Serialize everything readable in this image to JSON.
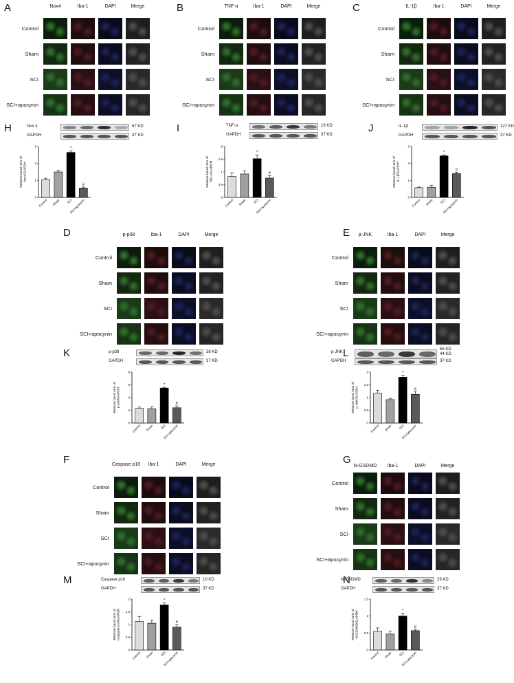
{
  "if_panels": [
    {
      "letter": "A",
      "rows": [
        "Control",
        "Sham",
        "SCI",
        "SCI+apocynin"
      ],
      "cols": [
        "Nox4",
        "Iba-1",
        "DAPI",
        "Merge"
      ]
    },
    {
      "letter": "B",
      "rows": [
        "Control",
        "Sham",
        "SCI",
        "SCI+apocynin"
      ],
      "cols": [
        "TNF-α",
        "Iba-1",
        "DAPI",
        "Merge"
      ]
    },
    {
      "letter": "C",
      "rows": [
        "Control",
        "Sham",
        "SCI",
        "SCI+apocynin"
      ],
      "cols": [
        "IL-1β",
        "Iba-1",
        "DAPI",
        "Merge"
      ]
    },
    {
      "letter": "D",
      "rows": [
        "Control",
        "Sham",
        "SCI",
        "SCI+apocynin"
      ],
      "cols": [
        "p-p38",
        "Iba-1",
        "DAPI",
        "Merge"
      ]
    },
    {
      "letter": "E",
      "rows": [
        "Control",
        "Sham",
        "SCI",
        "SCI+apocynin"
      ],
      "cols": [
        "p-JNK",
        "Iba-1",
        "DAPI",
        "Merge"
      ]
    },
    {
      "letter": "F",
      "rows": [
        "Control",
        "Sham",
        "SCI",
        "SCI+apocynin"
      ],
      "cols": [
        "Caspase p10",
        "Iba-1",
        "DAPI",
        "Merge"
      ]
    },
    {
      "letter": "G",
      "rows": [
        "Control",
        "Sham",
        "SCI",
        "SCI+apocynin"
      ],
      "cols": [
        "N-GSDMD",
        "Iba-1",
        "DAPI",
        "Merge"
      ]
    }
  ],
  "blots": [
    {
      "letter": "H",
      "protein": "Nox 4",
      "protein_kd": "67 KD",
      "loading": "GAPDH",
      "loading_kd": "37 KD",
      "intensity": [
        0.35,
        0.5,
        0.8,
        0.15
      ]
    },
    {
      "letter": "I",
      "protein": "TNF-α",
      "protein_kd": "16 KD",
      "loading": "GAPDH",
      "loading_kd": "37 KD",
      "intensity": [
        0.45,
        0.55,
        0.75,
        0.4
      ]
    },
    {
      "letter": "J",
      "protein": "IL-1β",
      "protein_kd": "127 KD",
      "loading": "GAPDH",
      "loading_kd": "37 KD",
      "intensity": [
        0.2,
        0.2,
        0.85,
        0.6
      ]
    },
    {
      "letter": "K",
      "protein": "p-p38",
      "protein_kd": "38 KD",
      "loading": "GAPDH",
      "loading_kd": "37 KD",
      "intensity": [
        0.5,
        0.5,
        0.85,
        0.45
      ]
    },
    {
      "letter": "L",
      "protein": "p-JNK",
      "protein_kd": "55 KD\n44 KD",
      "loading": "GAPDH",
      "loading_kd": "37 KD",
      "intensity": [
        0.55,
        0.5,
        0.75,
        0.5
      ]
    },
    {
      "letter": "M",
      "protein": "Caspase p10",
      "protein_kd": "10 KD",
      "loading": "GAPDH",
      "loading_kd": "37 KD",
      "intensity": [
        0.55,
        0.55,
        0.75,
        0.4
      ]
    },
    {
      "letter": "N",
      "protein": "N-GSDMD",
      "protein_kd": "29 KD",
      "loading": "GAPDH",
      "loading_kd": "37 KD",
      "intensity": [
        0.55,
        0.5,
        0.8,
        0.35
      ]
    }
  ],
  "chart_data": [
    {
      "panel": "H",
      "type": "bar",
      "categories": [
        "Control",
        "Sham",
        "SCI",
        "SCI+apocynin"
      ],
      "values": [
        1.05,
        1.5,
        2.65,
        0.55
      ],
      "errors": [
        0.08,
        0.1,
        0.1,
        0.06
      ],
      "ylabel": "Relative band ratio of Nox4/GAPDH",
      "ylim": [
        0,
        3
      ],
      "yticks": [
        0,
        1,
        2,
        3
      ],
      "annotations": [
        "",
        "",
        "*",
        "#"
      ],
      "colors": [
        "#dcdcdc",
        "#a0a0a0",
        "#000000",
        "#5a5a5a"
      ]
    },
    {
      "panel": "I",
      "type": "bar",
      "categories": [
        "Control",
        "Sham",
        "SCI",
        "SCI+apocynin"
      ],
      "values": [
        0.82,
        0.92,
        1.52,
        0.76
      ],
      "errors": [
        0.15,
        0.12,
        0.15,
        0.1
      ],
      "ylabel": "Relative band ratio of TNF-α/GAPDH",
      "ylim": [
        0,
        2
      ],
      "yticks": [
        0,
        0.5,
        1,
        1.5,
        2
      ],
      "annotations": [
        "",
        "",
        "*",
        "#"
      ],
      "colors": [
        "#dcdcdc",
        "#a0a0a0",
        "#000000",
        "#5a5a5a"
      ]
    },
    {
      "panel": "J",
      "type": "bar",
      "categories": [
        "Control",
        "Sham",
        "SCI",
        "SCI+apocynin"
      ],
      "values": [
        0.57,
        0.6,
        2.45,
        1.4
      ],
      "errors": [
        0.04,
        0.12,
        0.06,
        0.08
      ],
      "ylabel": "Relative band ratio of IL-1β/GAPDH",
      "ylim": [
        0,
        3
      ],
      "yticks": [
        0,
        1,
        2,
        3
      ],
      "annotations": [
        "",
        "",
        "*",
        "#"
      ],
      "colors": [
        "#dcdcdc",
        "#a0a0a0",
        "#000000",
        "#5a5a5a"
      ]
    },
    {
      "panel": "K",
      "type": "bar",
      "categories": [
        "Control",
        "Sham",
        "SCI",
        "SCI+apocynin"
      ],
      "values": [
        2.3,
        2.25,
        5.5,
        2.4
      ],
      "errors": [
        0.2,
        0.3,
        0.12,
        0.3
      ],
      "ylabel": "Relative band ratio of p-p38/GAPDH",
      "ylim": [
        0,
        8
      ],
      "yticks": [
        0,
        2,
        4,
        6,
        8
      ],
      "annotations": [
        "",
        "",
        "*",
        "#"
      ],
      "colors": [
        "#dcdcdc",
        "#a0a0a0",
        "#000000",
        "#5a5a5a"
      ]
    },
    {
      "panel": "L",
      "type": "bar",
      "categories": [
        "Control",
        "Sham",
        "SCI",
        "SCI+apocynin"
      ],
      "values": [
        1.17,
        0.92,
        1.8,
        1.13
      ],
      "errors": [
        0.12,
        0.05,
        0.08,
        0.12
      ],
      "ylabel": "Relative band ratio of p-JNK/GAPDH",
      "ylim": [
        0,
        2
      ],
      "yticks": [
        0,
        0.5,
        1,
        1.5,
        2
      ],
      "annotations": [
        "",
        "",
        "*",
        "#"
      ],
      "colors": [
        "#dcdcdc",
        "#a0a0a0",
        "#000000",
        "#5a5a5a"
      ]
    },
    {
      "panel": "M",
      "type": "bar",
      "categories": [
        "Control",
        "Sham",
        "SCI",
        "SCI+apocynin"
      ],
      "values": [
        1.12,
        1.05,
        1.77,
        0.9
      ],
      "errors": [
        0.2,
        0.12,
        0.08,
        0.1
      ],
      "ylabel": "Relative band ratio of Caspase p10/GAPDH",
      "ylim": [
        0,
        2
      ],
      "yticks": [
        0,
        0.5,
        1,
        1.5,
        2
      ],
      "annotations": [
        "",
        "",
        "*",
        "#"
      ],
      "colors": [
        "#dcdcdc",
        "#a0a0a0",
        "#000000",
        "#5a5a5a"
      ]
    },
    {
      "panel": "N",
      "type": "bar",
      "categories": [
        "Control",
        "Sham",
        "SCI",
        "SCI+apocynin"
      ],
      "values": [
        0.55,
        0.47,
        1.0,
        0.57
      ],
      "errors": [
        0.1,
        0.09,
        0.08,
        0.04
      ],
      "ylabel": "Relative band ratio of N-GSDMD/GAPDH",
      "ylim": [
        0,
        1.5
      ],
      "yticks": [
        0,
        0.5,
        1,
        1.5
      ],
      "annotations": [
        "",
        "",
        "*",
        "#"
      ],
      "colors": [
        "#dcdcdc",
        "#a0a0a0",
        "#000000",
        "#5a5a5a"
      ]
    }
  ]
}
